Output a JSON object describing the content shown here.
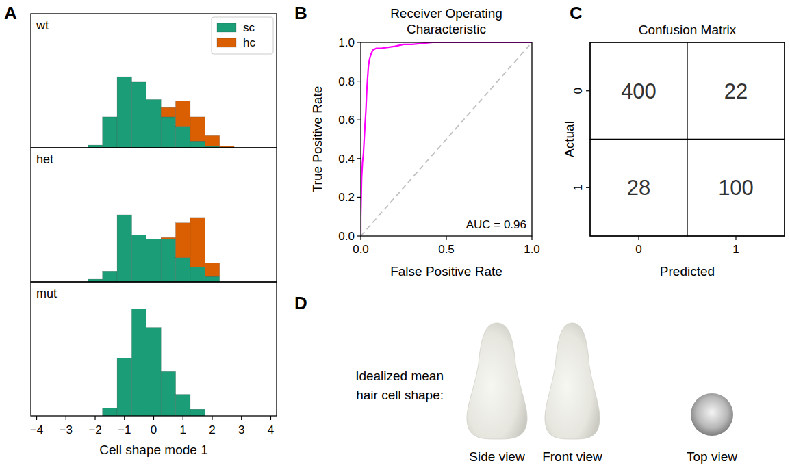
{
  "chart_data": [
    {
      "type": "histogram",
      "panel_titles": [
        "wt",
        "het",
        "mut"
      ],
      "xlabel": "Cell shape mode 1",
      "bins": [
        -2.25,
        -1.75,
        -1.25,
        -0.75,
        -0.25,
        0.25,
        0.75,
        1.25,
        1.75,
        2.25,
        2.75
      ],
      "xlim": [
        -4.2,
        4.2
      ],
      "xticks": [
        {
          "value": -4,
          "label": "−4"
        },
        {
          "value": -3,
          "label": "−3"
        },
        {
          "value": -2,
          "label": "−2"
        },
        {
          "value": -1,
          "label": "−1"
        },
        0,
        1,
        2,
        3,
        4
      ],
      "ylim": [
        0,
        100
      ],
      "stacked": true,
      "legend": "upper right",
      "tick_labels": "x",
      "series": [
        {
          "name": "sc",
          "color": "#1b9e77",
          "values": [
            [
              2,
              23,
              53,
              49,
              36,
              23,
              16,
              5,
              1,
              0
            ],
            [
              2,
              8,
              50,
              35,
              32,
              32,
              18,
              11,
              4,
              0
            ],
            [
              0,
              6,
              43,
              80,
              66,
              33,
              16,
              5,
              0,
              0
            ]
          ]
        },
        {
          "name": "hc",
          "color": "#d95f02",
          "values": [
            [
              0,
              0,
              0,
              0,
              0,
              7,
              19,
              18,
              8,
              1
            ],
            [
              0,
              0,
              0,
              0,
              0,
              1,
              26,
              37,
              10,
              0
            ],
            [
              0,
              0,
              0,
              0,
              0,
              0,
              0,
              0,
              0,
              0
            ]
          ]
        }
      ]
    },
    {
      "type": "line",
      "title": "Receiver Operating Characteristic",
      "xlabel": "False Positive Rate",
      "ylabel": "True Positive Rate",
      "annotation": "AUC = 0.96",
      "xlim": [
        0,
        1
      ],
      "ylim": [
        0,
        1
      ],
      "xticks": [
        {
          "value": 0,
          "label": "0.0"
        },
        {
          "value": 0.5,
          "label": "0.5"
        },
        {
          "value": 1,
          "label": "1.0"
        }
      ],
      "yticks": [
        {
          "value": 0,
          "label": "0.0"
        },
        {
          "value": 0.2,
          "label": "0.2"
        },
        {
          "value": 0.4,
          "label": "0.4"
        },
        {
          "value": 0.6,
          "label": "0.6"
        },
        {
          "value": 0.8,
          "label": "0.8"
        },
        {
          "value": 1,
          "label": "1.0"
        }
      ],
      "series": [
        {
          "color": "#ff00ff",
          "line_style": "solid",
          "x": [
            0,
            0,
            0.005,
            0.01,
            0.015,
            0.02,
            0.025,
            0.03,
            0.035,
            0.04,
            0.045,
            0.05,
            0.06,
            0.07,
            0.09,
            0.12,
            0.16,
            0.2,
            0.25,
            0.3,
            0.42,
            1
          ],
          "values": [
            0,
            0.1,
            0.3,
            0.38,
            0.42,
            0.5,
            0.58,
            0.65,
            0.75,
            0.82,
            0.88,
            0.91,
            0.94,
            0.96,
            0.97,
            0.97,
            0.975,
            0.98,
            0.99,
            0.99,
            1,
            1
          ]
        },
        {
          "color": "#c0c0c0",
          "line_style": "dashed",
          "x": [
            0,
            1
          ],
          "values": [
            0,
            1
          ]
        }
      ]
    },
    {
      "type": "heatmap",
      "title": "Confusion Matrix",
      "xlabel": "Predicted",
      "ylabel": "Actual",
      "xlim": [
        -0.5,
        1.5
      ],
      "ylim": [
        1.5,
        -0.5
      ],
      "xticks": [
        0,
        1
      ],
      "yticks": [
        0,
        1
      ],
      "cells": [
        [
          400,
          22
        ],
        [
          28,
          100
        ]
      ],
      "color": "#ffffff",
      "data_labels": true
    }
  ],
  "figure": {
    "panel_labels": [
      "A",
      "B",
      "C",
      "D"
    ],
    "illustration": {
      "title": "Idealized mean hair cell shape:",
      "views": [
        "Side view",
        "Front view",
        "Top view"
      ]
    }
  }
}
